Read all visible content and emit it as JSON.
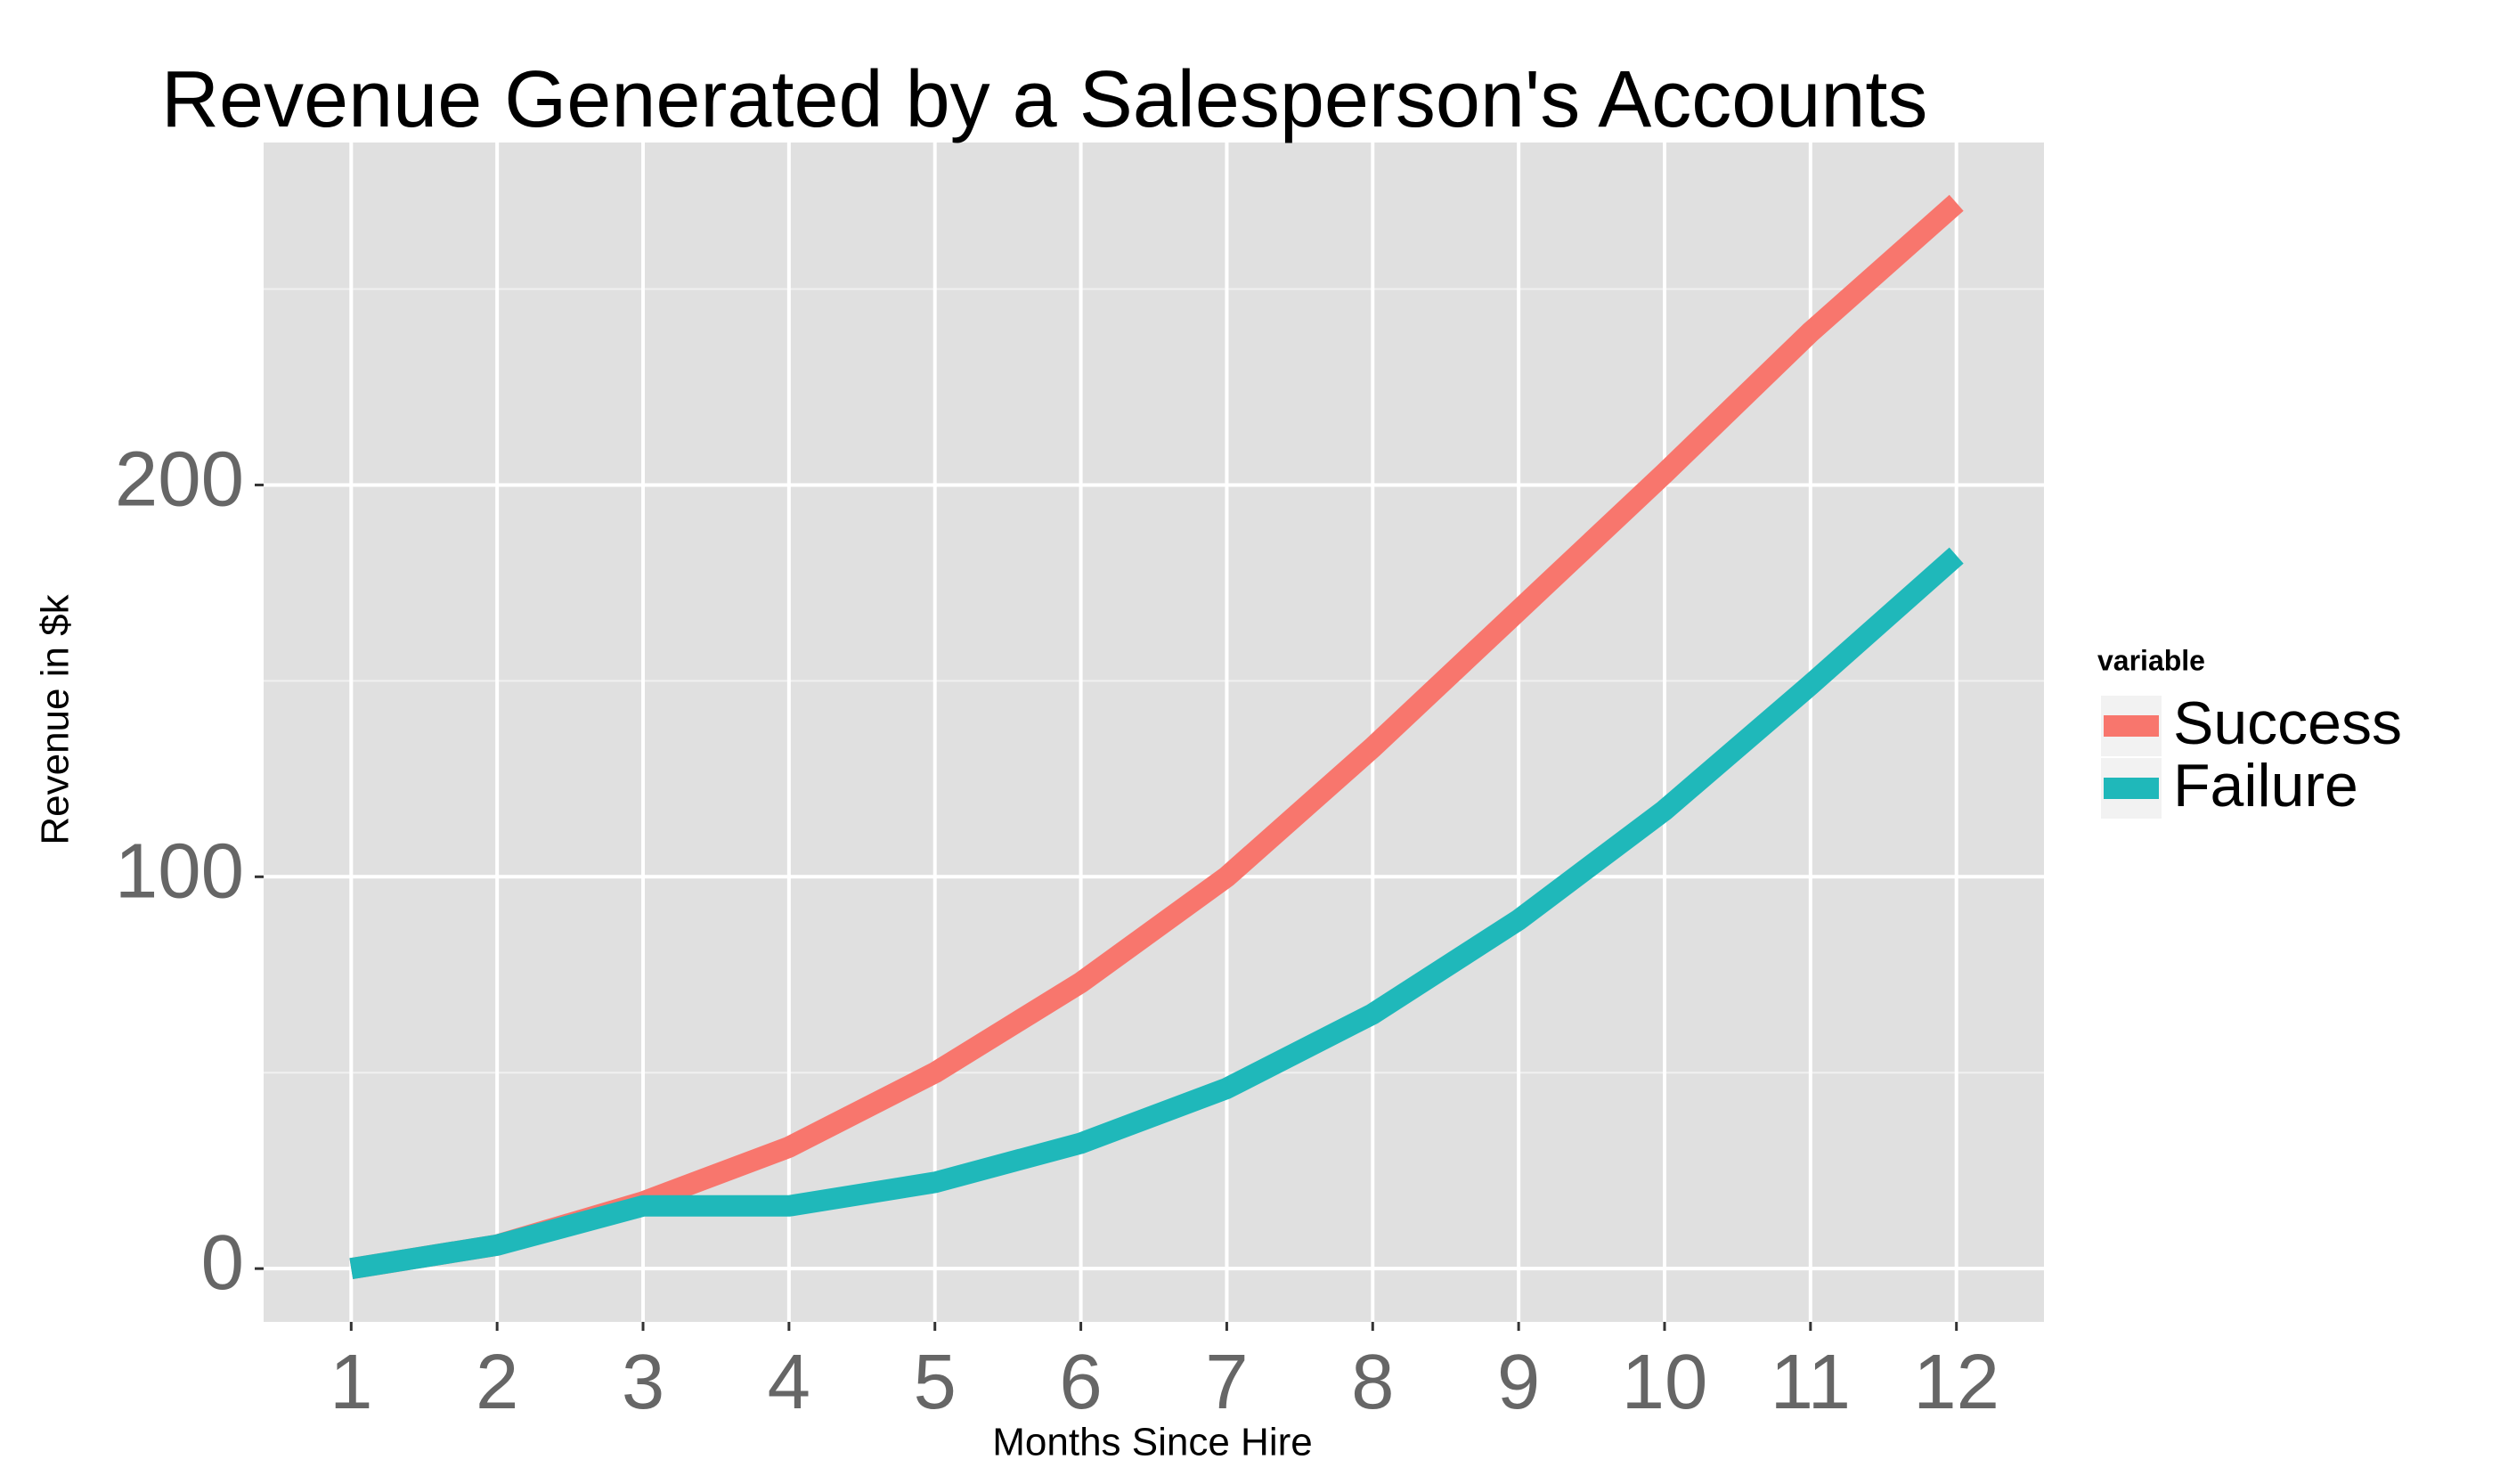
{
  "chart_data": {
    "type": "line",
    "title": "Revenue Generated by a Salesperson's Accounts",
    "x_label": "Months Since Hire",
    "y_label": "Revenue in $k",
    "x": [
      1,
      2,
      3,
      4,
      5,
      6,
      7,
      8,
      9,
      10,
      11,
      12
    ],
    "series": [
      {
        "name": "Success",
        "color": "#f8766d",
        "values": [
          0,
          6,
          17,
          31,
          50,
          73,
          100,
          133,
          168,
          203,
          239,
          272
        ]
      },
      {
        "name": "Failure",
        "color": "#1fb8ba",
        "values": [
          0,
          6,
          16,
          16,
          22,
          32,
          46,
          65,
          89,
          117,
          149,
          182
        ]
      }
    ],
    "xlim": [
      0.4,
      12.6
    ],
    "xticks": [
      1,
      2,
      3,
      4,
      5,
      6,
      7,
      8,
      9,
      10,
      11,
      12
    ],
    "ylim": [
      -13.6,
      287.4
    ],
    "yticks": [
      0,
      100,
      200
    ],
    "y_minor_grid": [
      50,
      150,
      250
    ],
    "grid": true,
    "legend_title": "variable",
    "legend_position": "right"
  }
}
